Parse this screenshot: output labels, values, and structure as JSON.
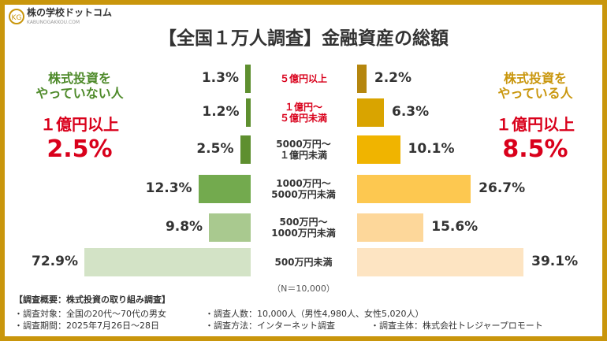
{
  "header": {
    "logo": "株の学校ドットコム",
    "logo_sub": "KABUNOGAKKOU.COM"
  },
  "chart_data": {
    "type": "butterfly",
    "title": "【全国１万人調査】金融資産の総額",
    "left_header": "株式投資を\nやっていない人",
    "right_header": "株式投資を\nやっている人",
    "left_highlight_label": "１億円以上",
    "left_highlight_value": "2.5%",
    "right_highlight_label": "１億円以上",
    "right_highlight_value": "8.5%",
    "categories": [
      "５億円以上",
      "１億円～\n５億円未満",
      "5000万円～\n１億円未満",
      "1000万円～\n5000万円未満",
      "500万円～\n1000万円未満",
      "500万円未満"
    ],
    "category_label_colors": [
      "#d9001b",
      "#d9001b",
      "#333333",
      "#333333",
      "#333333",
      "#333333"
    ],
    "series": [
      {
        "name": "株式投資をやっていない人",
        "side": "left",
        "values": [
          1.3,
          1.2,
          2.5,
          12.3,
          9.8,
          72.9
        ],
        "value_labels": [
          "1.3%",
          "1.2%",
          "2.5%",
          "12.3%",
          "9.8%",
          "72.9%"
        ],
        "colors": [
          "#5e8f2f",
          "#5e8f2f",
          "#5e8f2f",
          "#73aa4e",
          "#a9c98f",
          "#d3e3c6"
        ]
      },
      {
        "name": "株式投資をやっている人",
        "side": "right",
        "values": [
          2.2,
          6.3,
          10.1,
          26.7,
          15.6,
          39.1
        ],
        "value_labels": [
          "2.2%",
          "6.3%",
          "10.1%",
          "26.7%",
          "15.6%",
          "39.1%"
        ],
        "colors": [
          "#b5860e",
          "#d9a400",
          "#f0b400",
          "#fdc850",
          "#fdd79a",
          "#fde4c2"
        ]
      }
    ],
    "note": "（N＝10,000）"
  },
  "footer": {
    "heading": "【調査概要：株式投資の取り組み調査】",
    "items": [
      "・調査対象：全国の20代～70代の男女",
      "・調査人数：10,000人（男性4,980人、女性5,020人）",
      "・調査期間：2025年7月26日～28日",
      "・調査方法：インターネット調査",
      "・調査主体：株式会社トレジャープロモート"
    ]
  }
}
